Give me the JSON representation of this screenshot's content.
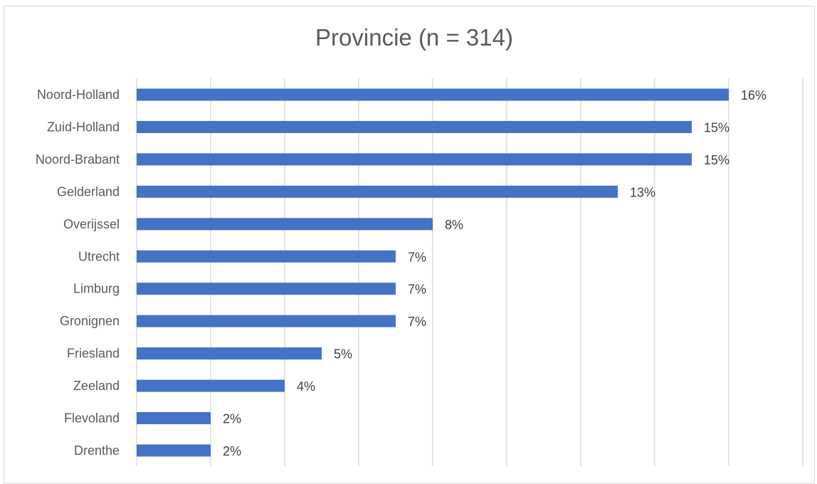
{
  "chart_data": {
    "type": "bar",
    "orientation": "horizontal",
    "title": "Provincie (n = 314)",
    "categories": [
      "Noord-Holland",
      "Zuid-Holland",
      "Noord-Brabant",
      "Gelderland",
      "Overijssel",
      "Utrecht",
      "Limburg",
      "Gronignen",
      "Friesland",
      "Zeeland",
      "Flevoland",
      "Drenthe"
    ],
    "values": [
      16,
      15,
      15,
      13,
      8,
      7,
      7,
      7,
      5,
      4,
      2,
      2
    ],
    "data_labels": [
      "16%",
      "15%",
      "15%",
      "13%",
      "8%",
      "7%",
      "7%",
      "7%",
      "5%",
      "4%",
      "2%",
      "2%"
    ],
    "xlim": [
      0,
      18
    ],
    "x_gridlines_every": 2,
    "grid": true,
    "legend": "none",
    "xlabel": "",
    "ylabel": "",
    "bar_color": "#4472c4"
  }
}
